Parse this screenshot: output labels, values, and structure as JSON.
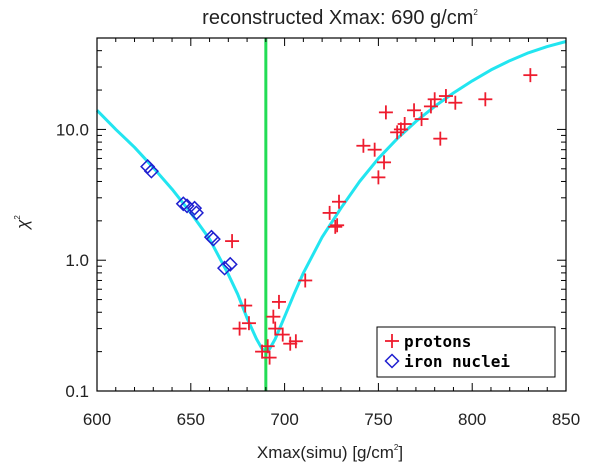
{
  "chart_data": {
    "type": "scatter",
    "title": "reconstructed Xmax: 690 g/cm",
    "title_superscript": "2",
    "xlabel": "Xmax(simu) [g/cm",
    "xlabel_superscript": "2",
    "xlabel_suffix": "]",
    "ylabel": "χ",
    "ylabel_superscript": "2",
    "xlim": [
      600,
      850
    ],
    "ylim": [
      0.1,
      50
    ],
    "yscale": "log",
    "grid": false,
    "legend_placement": "bottom-right",
    "x_ticks": [
      600,
      650,
      700,
      750,
      800,
      850
    ],
    "x_tick_labels": [
      "600",
      "650",
      "700",
      "750",
      "800",
      "850"
    ],
    "y_ticks": [
      0.1,
      1.0,
      10.0
    ],
    "y_tick_labels": [
      "0.1",
      "1.0",
      "10.0"
    ],
    "vertical_line": {
      "x": 690,
      "color": "#22dd55"
    },
    "fit_curve": {
      "color": "#22e5f0",
      "x": [
        600,
        610,
        620,
        630,
        640,
        650,
        660,
        670,
        675,
        680,
        685,
        688,
        690,
        692,
        695,
        700,
        705,
        710,
        720,
        730,
        740,
        750,
        760,
        770,
        780,
        790,
        800,
        810,
        820,
        830,
        840,
        850
      ],
      "y": [
        14,
        10,
        7.3,
        5.1,
        3.5,
        2.3,
        1.45,
        0.78,
        0.55,
        0.36,
        0.25,
        0.21,
        0.2,
        0.21,
        0.25,
        0.37,
        0.55,
        0.8,
        1.5,
        2.5,
        4.0,
        6.0,
        8.5,
        11.5,
        15,
        19,
        23.5,
        28.5,
        33.5,
        38.5,
        43,
        47
      ]
    },
    "series": [
      {
        "name": "protons",
        "marker": "plus",
        "color": "#ee1c2e",
        "x": [
          672,
          676,
          679,
          681,
          688,
          691,
          692,
          694,
          695,
          697,
          699,
          703,
          706,
          711,
          724,
          727,
          728,
          729,
          742,
          748,
          750,
          753,
          754,
          760,
          762,
          764,
          769,
          773,
          778,
          780,
          783,
          786,
          791,
          807,
          831
        ],
        "y": [
          1.4,
          0.3,
          0.45,
          0.33,
          0.2,
          0.22,
          0.18,
          0.37,
          0.3,
          0.48,
          0.27,
          0.23,
          0.24,
          0.7,
          2.3,
          1.8,
          1.85,
          2.8,
          7.5,
          7,
          4.3,
          5.6,
          13.5,
          9.5,
          10,
          11,
          14,
          12,
          15,
          17,
          8.5,
          18,
          16,
          17,
          26
        ]
      },
      {
        "name": "iron nuclei",
        "marker": "diamond",
        "color": "#1f1fd0",
        "x": [
          627,
          629,
          646,
          648,
          652,
          653,
          661,
          662,
          668,
          671
        ],
        "y": [
          5.2,
          4.8,
          2.7,
          2.6,
          2.5,
          2.3,
          1.5,
          1.45,
          0.87,
          0.93
        ]
      }
    ]
  }
}
